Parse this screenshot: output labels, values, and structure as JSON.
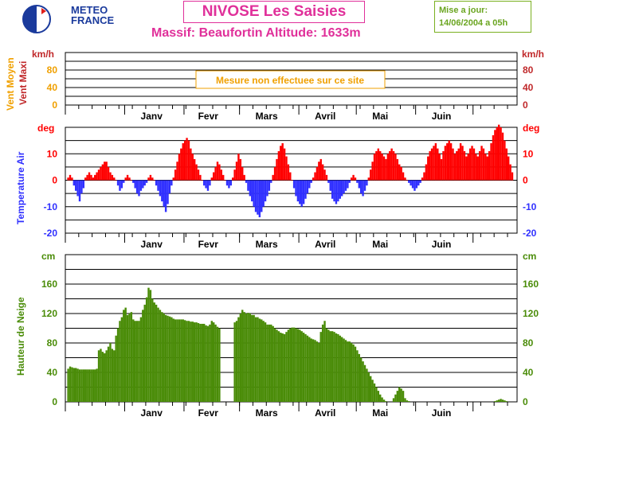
{
  "header": {
    "logo_text_line1": "METEO",
    "logo_text_line2": "FRANCE",
    "title": "NIVOSE Les Saisies",
    "subtitle": "Massif: Beaufortin Altitude: 1633m",
    "update_label": "Mise a jour:",
    "update_value": "14/06/2004 a 05h"
  },
  "colors": {
    "title": "#e0309a",
    "wind_mean": "#f0a000",
    "wind_max": "#c0282a",
    "temp_pos": "#ff0000",
    "temp_neg": "#3030ff",
    "snow": "#4a8c08",
    "update": "#6aa520"
  },
  "months": [
    "Janv",
    "Fevr",
    "Mars",
    "Avril",
    "Mai",
    "Juin"
  ],
  "chart_data": [
    {
      "type": "area",
      "name": "wind",
      "ylabel_left_1": "Vent Moyen",
      "ylabel_left_2": "Vent Maxi",
      "unit": "km/h",
      "yticks": [
        0,
        40,
        80
      ],
      "ylim": [
        0,
        120
      ],
      "annotation": "Mesure non effectuee sur ce site",
      "values": []
    },
    {
      "type": "bar",
      "name": "temperature",
      "ylabel": "Temperature Air",
      "unit": "deg",
      "yticks": [
        -20,
        -10,
        0,
        10
      ],
      "ylim": [
        -20,
        20
      ],
      "date_start": "2003-12-01",
      "values": [
        1,
        2,
        1,
        -2,
        -4,
        -6,
        -8,
        -5,
        -3,
        1,
        2,
        3,
        2,
        1,
        2,
        3,
        4,
        5,
        6,
        7,
        7,
        5,
        3,
        2,
        1,
        0,
        -2,
        -4,
        -3,
        -1,
        1,
        2,
        1,
        0,
        -1,
        -3,
        -5,
        -6,
        -4,
        -3,
        -2,
        -1,
        1,
        2,
        1,
        0,
        -2,
        -4,
        -6,
        -8,
        -10,
        -12,
        -9,
        -5,
        -2,
        1,
        4,
        7,
        10,
        12,
        14,
        15,
        16,
        15,
        12,
        10,
        8,
        6,
        4,
        2,
        0,
        -2,
        -3,
        -4,
        -2,
        1,
        3,
        5,
        7,
        6,
        4,
        2,
        0,
        -2,
        -3,
        -2,
        1,
        4,
        7,
        10,
        8,
        5,
        2,
        -1,
        -4,
        -6,
        -8,
        -10,
        -12,
        -13,
        -14,
        -12,
        -10,
        -8,
        -6,
        -4,
        -1,
        2,
        5,
        8,
        11,
        13,
        14,
        12,
        9,
        6,
        3,
        0,
        -3,
        -6,
        -8,
        -9,
        -10,
        -9,
        -7,
        -5,
        -3,
        -1,
        1,
        3,
        5,
        7,
        8,
        6,
        4,
        2,
        -1,
        -4,
        -7,
        -8,
        -9,
        -8,
        -7,
        -6,
        -5,
        -4,
        -3,
        -1,
        1,
        2,
        1,
        -1,
        -3,
        -5,
        -6,
        -4,
        -2,
        1,
        4,
        7,
        10,
        11,
        12,
        11,
        10,
        9,
        8,
        10,
        11,
        12,
        11,
        10,
        8,
        6,
        5,
        3,
        1,
        0,
        -1,
        -2,
        -3,
        -4,
        -3,
        -2,
        -1,
        1,
        3,
        6,
        9,
        11,
        12,
        13,
        14,
        12,
        10,
        8,
        11,
        13,
        14,
        15,
        14,
        12,
        10,
        11,
        12,
        14,
        13,
        11,
        9,
        10,
        12,
        13,
        12,
        10,
        9,
        11,
        13,
        12,
        10,
        9,
        11,
        14,
        17,
        19,
        20,
        21,
        20,
        18,
        15,
        12,
        9,
        6,
        3
      ]
    },
    {
      "type": "area",
      "name": "snow_depth",
      "ylabel": "Hauteur de Neige",
      "unit": "cm",
      "yticks": [
        0,
        40,
        80,
        120,
        160
      ],
      "ylim": [
        0,
        200
      ],
      "date_start": "2003-12-01",
      "values": [
        45,
        48,
        47,
        46,
        46,
        45,
        44,
        44,
        44,
        44,
        44,
        44,
        44,
        44,
        44,
        45,
        70,
        72,
        68,
        66,
        70,
        75,
        80,
        72,
        70,
        90,
        100,
        110,
        115,
        125,
        128,
        118,
        120,
        122,
        112,
        110,
        110,
        110,
        115,
        125,
        132,
        142,
        155,
        152,
        140,
        135,
        132,
        128,
        125,
        122,
        120,
        118,
        117,
        116,
        115,
        113,
        112,
        112,
        112,
        112,
        112,
        111,
        110,
        110,
        109,
        109,
        108,
        108,
        107,
        106,
        106,
        106,
        104,
        103,
        105,
        110,
        108,
        105,
        102,
        100,
        0,
        0,
        0,
        0,
        0,
        0,
        0,
        108,
        110,
        115,
        120,
        125,
        122,
        120,
        121,
        120,
        118,
        118,
        115,
        115,
        113,
        112,
        110,
        108,
        105,
        105,
        105,
        103,
        100,
        98,
        96,
        94,
        93,
        92,
        95,
        98,
        100,
        101,
        101,
        100,
        99,
        98,
        96,
        94,
        92,
        90,
        88,
        86,
        85,
        84,
        82,
        80,
        95,
        105,
        110,
        100,
        98,
        96,
        96,
        95,
        93,
        92,
        90,
        88,
        86,
        84,
        82,
        82,
        80,
        78,
        75,
        70,
        65,
        60,
        55,
        50,
        45,
        40,
        35,
        30,
        25,
        20,
        15,
        10,
        6,
        3,
        1,
        0,
        0,
        0,
        5,
        10,
        15,
        20,
        18,
        15,
        5,
        2,
        1,
        0,
        0,
        0,
        0,
        0,
        0,
        0,
        0,
        0,
        0,
        0,
        0,
        0,
        0,
        0,
        0,
        0,
        0,
        0,
        0,
        0,
        0,
        0,
        0,
        0,
        0,
        0,
        0,
        0,
        0,
        0,
        0,
        0,
        0,
        0,
        0,
        0,
        0,
        0,
        0,
        0,
        0,
        0,
        0,
        1,
        2,
        3,
        4,
        3,
        2,
        1,
        0,
        0,
        0,
        0,
        0,
        0,
        0,
        0,
        0,
        0,
        0,
        0,
        0,
        0,
        0,
        0,
        0
      ]
    }
  ]
}
